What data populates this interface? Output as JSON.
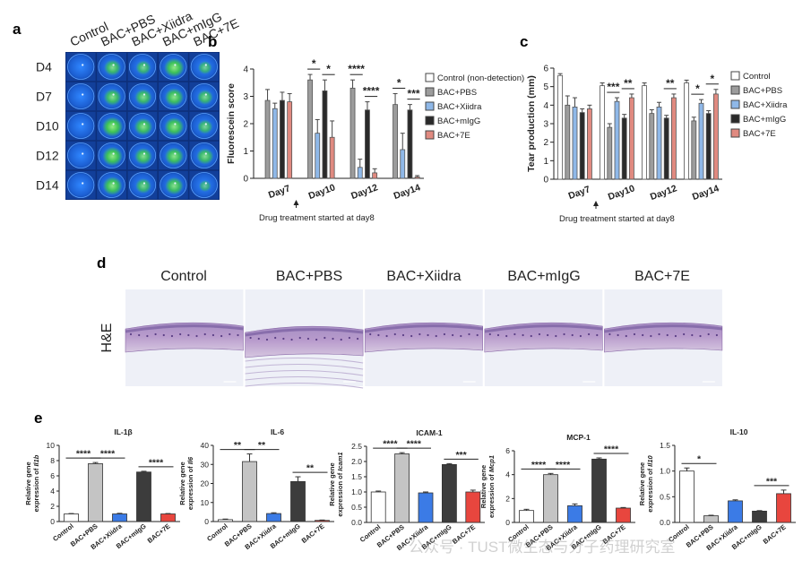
{
  "figure": {
    "watermark": "公众号 · TUST微生态与分子药理研究室"
  },
  "panel_a": {
    "letter": "a",
    "columns": [
      "Control",
      "BAC+PBS",
      "BAC+Xiidra",
      "BAC+mIgG",
      "BAC+7E"
    ],
    "rows": [
      "D4",
      "D7",
      "D10",
      "D12",
      "D14"
    ],
    "stain_intensity": [
      [
        0.05,
        0.55,
        0.4,
        0.8,
        0.3
      ],
      [
        0.05,
        0.6,
        0.55,
        0.7,
        0.45
      ],
      [
        0.05,
        0.85,
        0.65,
        0.75,
        0.4
      ],
      [
        0.05,
        0.8,
        0.6,
        0.7,
        0.55
      ],
      [
        0.05,
        0.75,
        0.45,
        0.65,
        0.15
      ]
    ],
    "colors": {
      "background": "#1e62d8",
      "stain": "#3ec84a"
    }
  },
  "panel_d": {
    "letter": "d",
    "columns": [
      "Control",
      "BAC+PBS",
      "BAC+Xiidra",
      "BAC+mIgG",
      "BAC+7E"
    ],
    "row_label": "H&E"
  },
  "chart_data": [
    {
      "id": "b",
      "letter": "b",
      "type": "bar",
      "ylabel": "Fluorescein score",
      "ylim": [
        0,
        4
      ],
      "yticks": [
        0,
        1,
        2,
        3,
        4
      ],
      "categories": [
        "Day7",
        "Day10",
        "Day12",
        "Day14"
      ],
      "note": "Drug treatment started at day8",
      "arrow_after_category": 0,
      "series": [
        {
          "name": "Control (non-detection)",
          "color": "#ffffff",
          "values": [
            0,
            0,
            0,
            0
          ],
          "errors": [
            0,
            0,
            0,
            0
          ]
        },
        {
          "name": "BAC+PBS",
          "color": "#9c9c9c",
          "values": [
            2.85,
            3.6,
            3.3,
            2.7
          ],
          "errors": [
            0.4,
            0.2,
            0.3,
            0.4
          ]
        },
        {
          "name": "BAC+Xiidra",
          "color": "#8fb8e8",
          "values": [
            2.55,
            1.65,
            0.4,
            1.05
          ],
          "errors": [
            0.2,
            0.5,
            0.3,
            0.6
          ]
        },
        {
          "name": "BAC+mIgG",
          "color": "#2a2a2a",
          "values": [
            2.85,
            3.2,
            2.5,
            2.5
          ],
          "errors": [
            0.3,
            0.4,
            0.3,
            0.2
          ]
        },
        {
          "name": "BAC+7E",
          "color": "#e08a80",
          "values": [
            2.8,
            1.5,
            0.2,
            0.05
          ],
          "errors": [
            0.3,
            0.6,
            0.15,
            0.05
          ]
        }
      ],
      "significance": [
        {
          "group": 1,
          "from": 1,
          "to": 2,
          "label": "*"
        },
        {
          "group": 1,
          "from": 3,
          "to": 4,
          "label": "*"
        },
        {
          "group": 2,
          "from": 1,
          "to": 2,
          "label": "****"
        },
        {
          "group": 2,
          "from": 3,
          "to": 4,
          "label": "****"
        },
        {
          "group": 3,
          "from": 1,
          "to": 2,
          "label": "*"
        },
        {
          "group": 3,
          "from": 3,
          "to": 4,
          "label": "***"
        }
      ]
    },
    {
      "id": "c",
      "letter": "c",
      "type": "bar",
      "ylabel": "Tear production (mm)",
      "ylim": [
        0,
        6
      ],
      "yticks": [
        0,
        1,
        2,
        3,
        4,
        5,
        6
      ],
      "categories": [
        "Day7",
        "Day10",
        "Day12",
        "Day14"
      ],
      "note": "Drug treatment started at day8",
      "arrow_after_category": 0,
      "series": [
        {
          "name": "Control",
          "color": "#ffffff",
          "values": [
            5.6,
            5.05,
            5.05,
            5.2
          ],
          "errors": [
            0.1,
            0.15,
            0.15,
            0.15
          ]
        },
        {
          "name": "BAC+PBS",
          "color": "#9c9c9c",
          "values": [
            4.0,
            2.8,
            3.55,
            3.15
          ],
          "errors": [
            0.5,
            0.2,
            0.2,
            0.2
          ]
        },
        {
          "name": "BAC+Xiidra",
          "color": "#8fb8e8",
          "values": [
            3.9,
            4.2,
            3.9,
            4.1
          ],
          "errors": [
            0.5,
            0.2,
            0.25,
            0.2
          ]
        },
        {
          "name": "BAC+mIgG",
          "color": "#2a2a2a",
          "values": [
            3.6,
            3.3,
            3.3,
            3.55
          ],
          "errors": [
            0.2,
            0.2,
            0.15,
            0.15
          ]
        },
        {
          "name": "BAC+7E",
          "color": "#e08a80",
          "values": [
            3.8,
            4.4,
            4.4,
            4.6
          ],
          "errors": [
            0.2,
            0.2,
            0.2,
            0.25
          ]
        }
      ],
      "significance": [
        {
          "group": 1,
          "from": 1,
          "to": 2,
          "label": "***"
        },
        {
          "group": 1,
          "from": 3,
          "to": 4,
          "label": "**"
        },
        {
          "group": 2,
          "from": 3,
          "to": 4,
          "label": "**"
        },
        {
          "group": 3,
          "from": 1,
          "to": 2,
          "label": "*"
        },
        {
          "group": 3,
          "from": 3,
          "to": 4,
          "label": "*"
        }
      ]
    },
    {
      "id": "e1",
      "letter": "e",
      "type": "bar",
      "title": "IL-1β",
      "ylabel_line1": "Relative gene",
      "ylabel_line2": "expression of ",
      "gene": "Il1b",
      "ylim": [
        0,
        10
      ],
      "yticks": [
        0,
        2,
        4,
        6,
        8,
        10
      ],
      "categories": [
        "Control",
        "BAC+PBS",
        "BAC+Xiidra",
        "BAC+mIgG",
        "BAC+7E"
      ],
      "values": [
        1.0,
        7.6,
        1.0,
        6.5,
        1.0
      ],
      "errors": [
        0.05,
        0.15,
        0.08,
        0.1,
        0.05
      ],
      "colors": [
        "#ffffff",
        "#c4c4c4",
        "#3b7be6",
        "#3c3c3c",
        "#e8463e"
      ],
      "significance": [
        {
          "from": 0,
          "to": 1,
          "label": "****"
        },
        {
          "from": 1,
          "to": 2,
          "label": "****"
        },
        {
          "from": 3,
          "to": 4,
          "label": "****"
        }
      ]
    },
    {
      "id": "e2",
      "type": "bar",
      "title": "IL-6",
      "ylabel_line1": "Relative gene",
      "ylabel_line2": "expression of ",
      "gene": "Il6",
      "ylim": [
        0,
        40
      ],
      "yticks": [
        0,
        10,
        20,
        30,
        40
      ],
      "categories": [
        "Control",
        "BAC+PBS",
        "BAC+Xiidra",
        "BAC+mIgG",
        "BAC+7E"
      ],
      "values": [
        1.0,
        31.5,
        4.2,
        21.0,
        0.6
      ],
      "errors": [
        0.3,
        4.0,
        0.4,
        2.5,
        0.2
      ],
      "colors": [
        "#ffffff",
        "#c4c4c4",
        "#3b7be6",
        "#3c3c3c",
        "#e8463e"
      ],
      "significance": [
        {
          "from": 0,
          "to": 1,
          "label": "**"
        },
        {
          "from": 1,
          "to": 2,
          "label": "**"
        },
        {
          "from": 3,
          "to": 4,
          "label": "**"
        }
      ]
    },
    {
      "id": "e3",
      "type": "bar",
      "title": "ICAM-1",
      "ylabel_line1": "Relative gene",
      "ylabel_line2": "expression of ",
      "gene": "Icam1",
      "ylim": [
        0,
        2.5
      ],
      "yticks": [
        0.0,
        0.5,
        1.0,
        1.5,
        2.0,
        2.5
      ],
      "ytick_labels": [
        "0.0",
        "0.5",
        "1.0",
        "1.5",
        "2.0",
        "2.5"
      ],
      "categories": [
        "Control",
        "BAC+PBS",
        "BAC+Xiidra",
        "BAC+mIgG",
        "BAC+7E"
      ],
      "values": [
        1.0,
        2.25,
        0.97,
        1.9,
        1.0
      ],
      "errors": [
        0.03,
        0.04,
        0.03,
        0.03,
        0.06
      ],
      "colors": [
        "#ffffff",
        "#c4c4c4",
        "#3b7be6",
        "#3c3c3c",
        "#e8463e"
      ],
      "significance": [
        {
          "from": 0,
          "to": 1,
          "label": "****"
        },
        {
          "from": 1,
          "to": 2,
          "label": "****"
        },
        {
          "from": 3,
          "to": 4,
          "label": "***"
        }
      ]
    },
    {
      "id": "e4",
      "type": "bar",
      "title": "MCP-1",
      "ylabel_line1": "Relative gene",
      "ylabel_line2": "expression of ",
      "gene": "Mcp1",
      "ylim": [
        0,
        6
      ],
      "yticks": [
        0,
        2,
        4,
        6
      ],
      "categories": [
        "Control",
        "BAC+PBS",
        "BAC+Xiidra",
        "BAC+mIgG",
        "BAC+7E"
      ],
      "values": [
        1.0,
        4.0,
        1.4,
        5.3,
        1.2
      ],
      "errors": [
        0.1,
        0.1,
        0.15,
        0.1,
        0.05
      ],
      "colors": [
        "#ffffff",
        "#c4c4c4",
        "#3b7be6",
        "#3c3c3c",
        "#e8463e"
      ],
      "significance": [
        {
          "from": 0,
          "to": 1,
          "label": "****"
        },
        {
          "from": 1,
          "to": 2,
          "label": "****"
        },
        {
          "from": 3,
          "to": 4,
          "label": "****"
        }
      ]
    },
    {
      "id": "e5",
      "type": "bar",
      "title": "IL-10",
      "ylabel_line1": "Relative gene",
      "ylabel_line2": "expression of ",
      "gene": "Il10",
      "ylim": [
        0,
        1.5
      ],
      "yticks": [
        0.0,
        0.5,
        1.0,
        1.5
      ],
      "ytick_labels": [
        "0.0",
        "0.5",
        "1.0",
        "1.5"
      ],
      "categories": [
        "Control",
        "BAC+PBS",
        "BAC+Xiidra",
        "BAC+mIgG",
        "BAC+7E"
      ],
      "values": [
        1.0,
        0.13,
        0.42,
        0.22,
        0.56
      ],
      "errors": [
        0.06,
        0.01,
        0.02,
        0.01,
        0.07
      ],
      "colors": [
        "#ffffff",
        "#c4c4c4",
        "#3b7be6",
        "#3c3c3c",
        "#e8463e"
      ],
      "significance": [
        {
          "from": 0,
          "to": 1,
          "label": "*"
        },
        {
          "from": 3,
          "to": 4,
          "label": "***"
        }
      ]
    }
  ]
}
